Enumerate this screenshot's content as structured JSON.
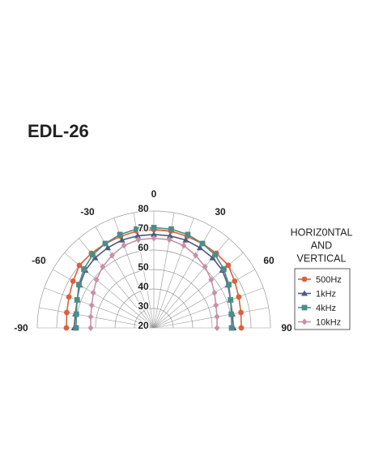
{
  "chart_data": {
    "type": "polar",
    "title": "EDL-26",
    "legend_title": [
      "HORIZ0NTAL",
      "AND",
      "VERTICAL"
    ],
    "theta": [
      -90,
      -80,
      -70,
      -60,
      -50,
      -40,
      -30,
      -20,
      -10,
      0,
      10,
      20,
      30,
      40,
      50,
      60,
      70,
      80,
      90
    ],
    "thetaticks": [
      -90,
      -60,
      -30,
      0,
      30,
      60,
      90
    ],
    "rlim": [
      20,
      80
    ],
    "rticks": [
      20,
      30,
      40,
      50,
      60,
      70,
      80
    ],
    "series": [
      {
        "name": "500Hz",
        "color": "#d9623d",
        "marker": "circle",
        "values": [
          65,
          65.5,
          66.5,
          68,
          70,
          70,
          70,
          70,
          70.5,
          70.5,
          70.5,
          70,
          70,
          70,
          70,
          68,
          66.5,
          65.5,
          65
        ]
      },
      {
        "name": "1kHz",
        "color": "#4d5b7c",
        "marker": "triangle",
        "values": [
          61,
          61,
          62,
          64,
          66,
          67,
          67.5,
          68,
          68,
          68,
          68,
          68,
          67.5,
          67,
          66,
          64,
          62,
          61,
          61
        ]
      },
      {
        "name": "4kHz",
        "color": "#4f8c88",
        "marker": "square",
        "values": [
          60,
          60.5,
          62,
          64.5,
          67,
          69,
          70,
          71,
          71.5,
          71.5,
          71.5,
          71,
          70,
          69,
          67,
          64.5,
          62,
          60.5,
          60
        ]
      },
      {
        "name": "10kHz",
        "color": "#c990a8",
        "marker": "diamond",
        "values": [
          52.5,
          53,
          54,
          56,
          58.5,
          61,
          63,
          65,
          66,
          66,
          66,
          65,
          63,
          61,
          58.5,
          56,
          54,
          53,
          52.5
        ]
      }
    ]
  }
}
